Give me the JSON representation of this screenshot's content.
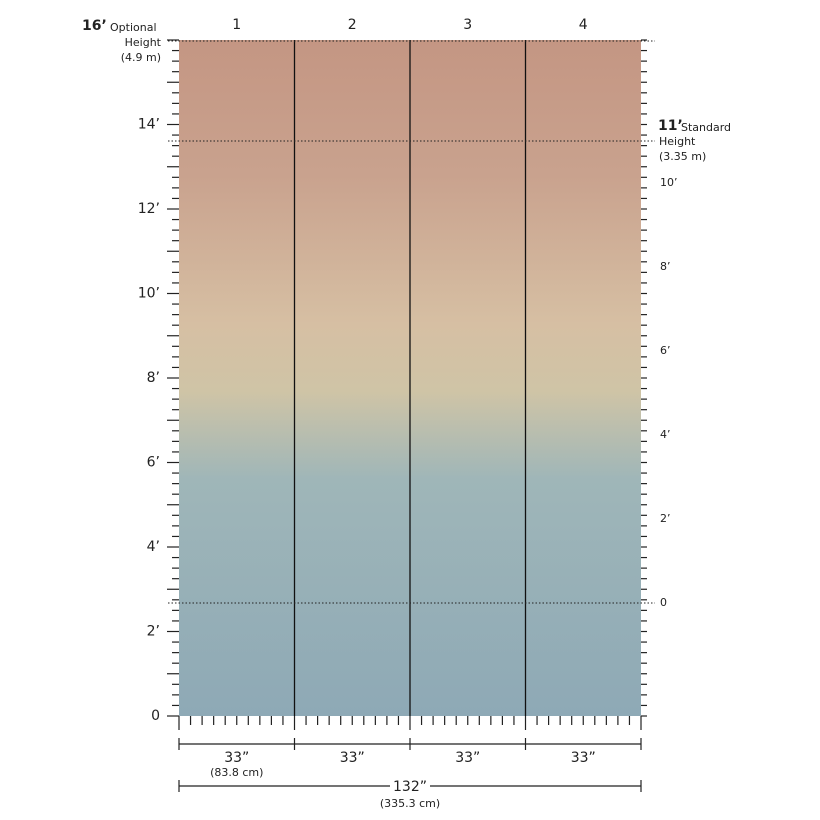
{
  "optional_height": {
    "value": "16’",
    "label": "Optional",
    "label_line2": "Height",
    "metric": "(4.9 m)"
  },
  "standard_height": {
    "value": "11’",
    "label": "Standard",
    "label_line2": "Height",
    "metric": "(3.35 m)"
  },
  "panels": [
    "1",
    "2",
    "3",
    "4"
  ],
  "left_scale": [
    "0",
    "2’",
    "4’",
    "6’",
    "8’",
    "10’",
    "12’",
    "14’"
  ],
  "right_scale": [
    "0",
    "2’",
    "4’",
    "6’",
    "8’",
    "10’"
  ],
  "panel_widths": [
    {
      "width": "33”",
      "metric": "(83.8 cm)"
    },
    {
      "width": "33”"
    },
    {
      "width": "33”"
    },
    {
      "width": "33”"
    }
  ],
  "total_width": {
    "width": "132”",
    "metric": "(335.3 cm)"
  }
}
